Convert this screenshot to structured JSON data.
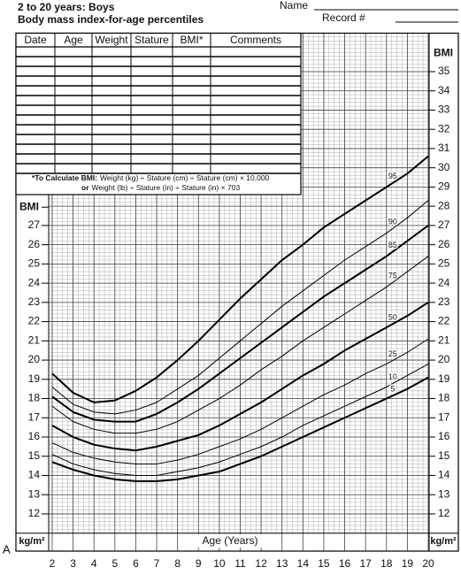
{
  "header": {
    "title": "2 to 20 years: Boys",
    "subtitle": "Body mass index-for-age percentiles",
    "name_label": "Name",
    "record_label": "Record #"
  },
  "record_table": {
    "columns": [
      "Date",
      "Age",
      "Weight",
      "Stature",
      "BMI*",
      "Comments"
    ],
    "footnote": [
      [
        "*To Calculate BMI:",
        "Weight (kg) ÷ Stature (cm) ÷ Stature (cm) × 10,000"
      ],
      [
        "or",
        "Weight (lb) ÷ Stature (in) ÷ Stature (in) × 703"
      ]
    ]
  },
  "panel_label": "A",
  "chart_data": {
    "type": "line",
    "x_label": "Age (Years)",
    "y_label": "BMI",
    "y_unit": "kg/m²",
    "y2_label": "BMI",
    "y2_unit": "kg/m²",
    "x": [
      2,
      3,
      4,
      5,
      6,
      7,
      8,
      9,
      10,
      11,
      12,
      13,
      14,
      15,
      16,
      17,
      18,
      19,
      20
    ],
    "xlim": [
      2,
      20
    ],
    "xticks": [
      2,
      3,
      4,
      5,
      6,
      7,
      8,
      9,
      10,
      11,
      12,
      13,
      14,
      15,
      16,
      17,
      18,
      19,
      20
    ],
    "ylim": [
      11,
      37
    ],
    "yticks": [
      12,
      13,
      14,
      15,
      16,
      17,
      18,
      19,
      20,
      21,
      22,
      23,
      24,
      25,
      26,
      27,
      28,
      29,
      30,
      31,
      32,
      33,
      34,
      35
    ],
    "y2lim": [
      11,
      37
    ],
    "y2ticks": [
      12,
      13,
      14,
      15,
      16,
      17,
      18,
      19,
      20,
      21,
      22,
      23,
      24,
      25,
      26,
      27
    ],
    "grid": true,
    "series": [
      {
        "name": "95",
        "color": "#000000",
        "line_width": 2,
        "values": [
          19.3,
          18.3,
          17.8,
          17.9,
          18.4,
          19.1,
          20.0,
          21.0,
          22.1,
          23.2,
          24.2,
          25.2,
          26.0,
          26.9,
          27.6,
          28.3,
          29.0,
          29.7,
          30.6
        ]
      },
      {
        "name": "90",
        "color": "#000000",
        "line_width": 1,
        "values": [
          18.6,
          17.7,
          17.3,
          17.2,
          17.4,
          17.8,
          18.5,
          19.2,
          20.1,
          21.0,
          21.9,
          22.8,
          23.6,
          24.4,
          25.2,
          25.9,
          26.6,
          27.4,
          28.3
        ]
      },
      {
        "name": "85",
        "color": "#000000",
        "line_width": 2,
        "values": [
          18.1,
          17.3,
          16.9,
          16.8,
          16.8,
          17.2,
          17.8,
          18.5,
          19.3,
          20.1,
          20.9,
          21.7,
          22.5,
          23.3,
          24.0,
          24.7,
          25.4,
          26.2,
          27.0
        ]
      },
      {
        "name": "75",
        "color": "#000000",
        "line_width": 1,
        "values": [
          17.6,
          16.8,
          16.4,
          16.2,
          16.2,
          16.4,
          16.8,
          17.4,
          18.0,
          18.7,
          19.5,
          20.2,
          21.0,
          21.7,
          22.4,
          23.1,
          23.8,
          24.6,
          25.4
        ]
      },
      {
        "name": "50",
        "color": "#000000",
        "line_width": 2,
        "values": [
          16.6,
          16.0,
          15.6,
          15.4,
          15.3,
          15.5,
          15.8,
          16.1,
          16.6,
          17.2,
          17.8,
          18.5,
          19.2,
          19.8,
          20.5,
          21.1,
          21.7,
          22.3,
          23.0
        ]
      },
      {
        "name": "25",
        "color": "#000000",
        "line_width": 1,
        "values": [
          15.7,
          15.2,
          14.9,
          14.7,
          14.6,
          14.6,
          14.8,
          15.1,
          15.5,
          15.9,
          16.4,
          17.0,
          17.6,
          18.2,
          18.7,
          19.3,
          19.8,
          20.4,
          21.1
        ]
      },
      {
        "name": "10",
        "color": "#000000",
        "line_width": 1,
        "values": [
          15.1,
          14.6,
          14.3,
          14.1,
          14.0,
          14.0,
          14.2,
          14.4,
          14.7,
          15.1,
          15.5,
          16.0,
          16.6,
          17.1,
          17.6,
          18.1,
          18.6,
          19.2,
          19.8
        ]
      },
      {
        "name": "5",
        "color": "#000000",
        "line_width": 2,
        "values": [
          14.7,
          14.3,
          14.0,
          13.8,
          13.7,
          13.7,
          13.8,
          14.0,
          14.2,
          14.6,
          15.0,
          15.5,
          16.0,
          16.5,
          17.0,
          17.5,
          18.0,
          18.5,
          19.1
        ]
      }
    ]
  }
}
